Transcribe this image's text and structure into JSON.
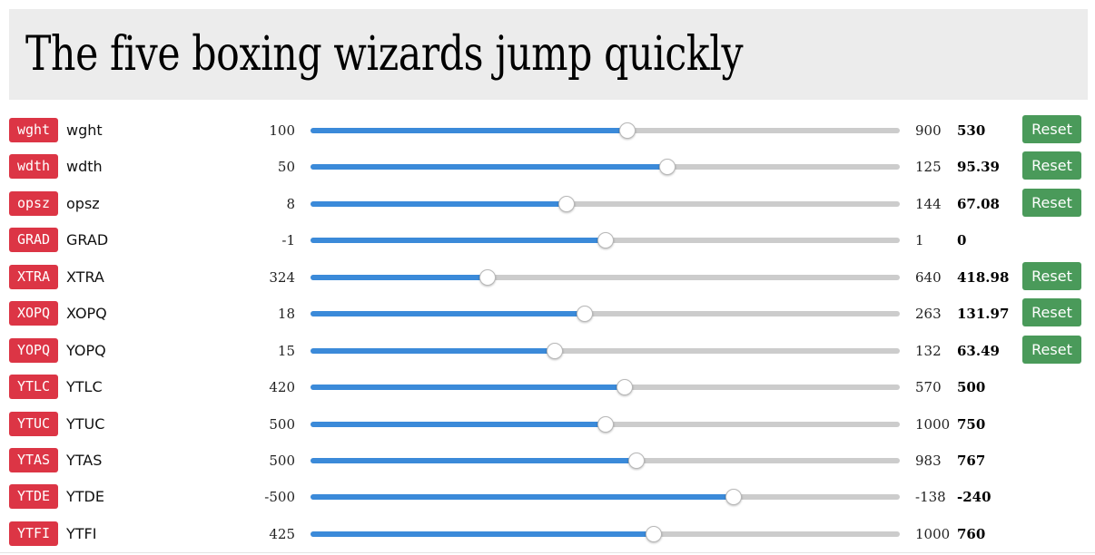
{
  "preview": {
    "text": "The five boxing wizards jump quickly"
  },
  "colors": {
    "tag_bg": "#dc3545",
    "slider_fill": "#3b8ad9",
    "slider_track": "#cccccc",
    "reset_bg": "#4a9a5a",
    "preview_bg": "#ececec"
  },
  "reset_label": "Reset",
  "axes": [
    {
      "tag": "wght",
      "name": "wght",
      "min": "100",
      "max": "900",
      "value": "530",
      "fraction": 0.5375,
      "reset": true
    },
    {
      "tag": "wdth",
      "name": "wdth",
      "min": "50",
      "max": "125",
      "value": "95.39",
      "fraction": 0.6052,
      "reset": true
    },
    {
      "tag": "opsz",
      "name": "opsz",
      "min": "8",
      "max": "144",
      "value": "67.08",
      "fraction": 0.4344,
      "reset": true
    },
    {
      "tag": "GRAD",
      "name": "GRAD",
      "min": "-1",
      "max": "1",
      "value": "0",
      "fraction": 0.5,
      "reset": false
    },
    {
      "tag": "XTRA",
      "name": "XTRA",
      "min": "324",
      "max": "640",
      "value": "418.98",
      "fraction": 0.3006,
      "reset": true
    },
    {
      "tag": "XOPQ",
      "name": "XOPQ",
      "min": "18",
      "max": "263",
      "value": "131.97",
      "fraction": 0.4652,
      "reset": true
    },
    {
      "tag": "YOPQ",
      "name": "YOPQ",
      "min": "15",
      "max": "132",
      "value": "63.49",
      "fraction": 0.4144,
      "reset": true
    },
    {
      "tag": "YTLC",
      "name": "YTLC",
      "min": "420",
      "max": "570",
      "value": "500",
      "fraction": 0.5333,
      "reset": false
    },
    {
      "tag": "YTUC",
      "name": "YTUC",
      "min": "500",
      "max": "1000",
      "value": "750",
      "fraction": 0.5,
      "reset": false
    },
    {
      "tag": "YTAS",
      "name": "YTAS",
      "min": "500",
      "max": "983",
      "value": "767",
      "fraction": 0.5528,
      "reset": false
    },
    {
      "tag": "YTDE",
      "name": "YTDE",
      "min": "-500",
      "max": "-138",
      "value": "-240",
      "fraction": 0.7182,
      "reset": false
    },
    {
      "tag": "YTFI",
      "name": "YTFI",
      "min": "425",
      "max": "1000",
      "value": "760",
      "fraction": 0.5826,
      "reset": false
    }
  ]
}
